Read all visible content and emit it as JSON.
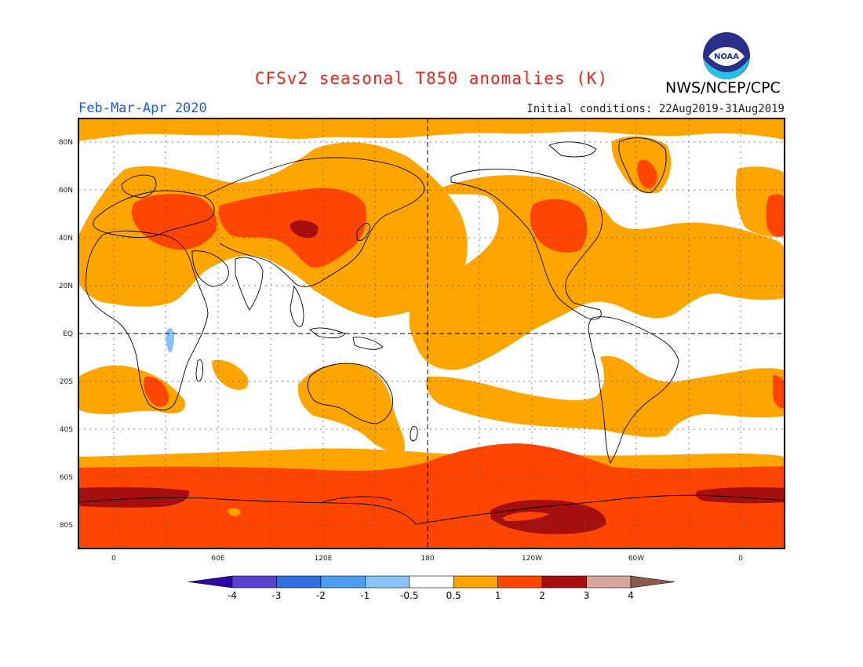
{
  "header": {
    "title": "CFSv2 seasonal T850 anomalies (K)",
    "credit": "NWS/NCEP/CPC",
    "period": "Feb-Mar-Apr 2020",
    "initial_conditions": "Initial conditions: 22Aug2019-31Aug2019",
    "logo_text": "NOAA"
  },
  "map": {
    "variable": "T850 anomaly",
    "units": "K",
    "projection": "equirectangular",
    "lon_labels": [
      "0",
      "60E",
      "120E",
      "180",
      "120W",
      "60W",
      "0"
    ],
    "lat_labels": [
      "80N",
      "60N",
      "40N",
      "20N",
      "EQ",
      "20S",
      "40S",
      "60S",
      "80S"
    ]
  },
  "colorbar": {
    "labels": [
      "-4",
      "-3",
      "-2",
      "-1",
      "-0.5",
      "0.5",
      "1",
      "2",
      "3",
      "4"
    ],
    "colors": [
      "#2f06a6",
      "#5a42d0",
      "#2f6fe0",
      "#4b9ef0",
      "#8ac2f5",
      "#ffffff",
      "#ffa500",
      "#ff4500",
      "#a50f0f",
      "#d6a69a",
      "#8c5a4a"
    ]
  }
}
